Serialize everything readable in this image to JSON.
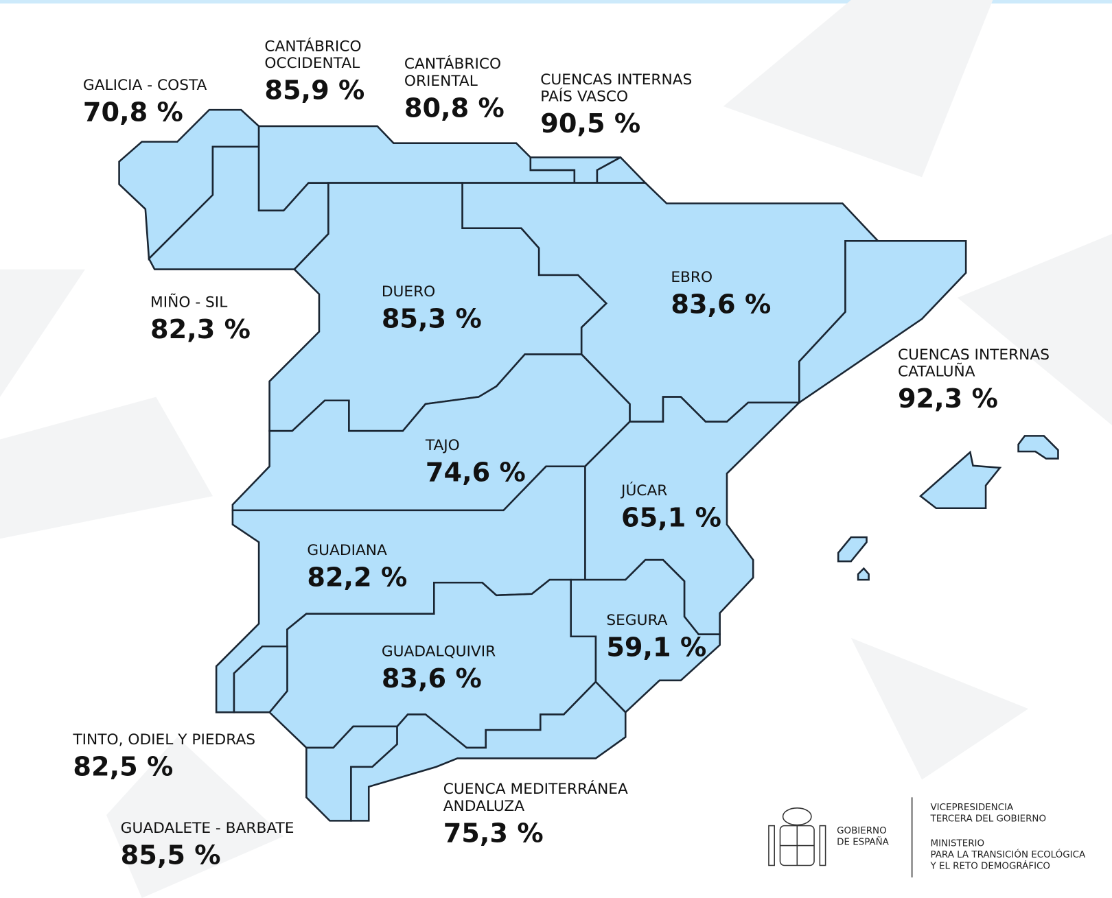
{
  "basins": [
    {
      "name": [
        "GALICIA - COSTA"
      ],
      "value": "70,8 %"
    },
    {
      "name": [
        "CANTÁBRICO",
        "OCCIDENTAL"
      ],
      "value": "85,9 %"
    },
    {
      "name": [
        "CANTÁBRICO",
        "ORIENTAL"
      ],
      "value": "80,8 %"
    },
    {
      "name": [
        "CUENCAS INTERNAS",
        "PAÍS VASCO"
      ],
      "value": "90,5 %"
    },
    {
      "name": [
        "MIÑO - SIL"
      ],
      "value": "82,3 %"
    },
    {
      "name": [
        "DUERO"
      ],
      "value": "85,3 %"
    },
    {
      "name": [
        "EBRO"
      ],
      "value": "83,6 %"
    },
    {
      "name": [
        "CUENCAS INTERNAS",
        "CATALUÑA"
      ],
      "value": "92,3 %"
    },
    {
      "name": [
        "TAJO"
      ],
      "value": "74,6 %"
    },
    {
      "name": [
        "JÚCAR"
      ],
      "value": "65,1 %"
    },
    {
      "name": [
        "GUADIANA"
      ],
      "value": "82,2 %"
    },
    {
      "name": [
        "SEGURA"
      ],
      "value": "59,1 %"
    },
    {
      "name": [
        "GUADALQUIVIR"
      ],
      "value": "83,6 %"
    },
    {
      "name": [
        "TINTO, ODIEL Y PIEDRAS"
      ],
      "value": "82,5 %"
    },
    {
      "name": [
        "GUADALETE - BARBATE"
      ],
      "value": "85,5 %"
    },
    {
      "name": [
        "CUENCA MEDITERRÁNEA",
        "ANDALUZA"
      ],
      "value": "75,3 %"
    }
  ],
  "footer": {
    "government": [
      "GOBIERNO",
      "DE ESPAÑA"
    ],
    "vicepresidency": [
      "VICEPRESIDENCIA",
      "TERCERA DEL GOBIERNO"
    ],
    "ministry": [
      "MINISTERIO",
      "PARA LA TRANSICIÓN ECOLÓGICA",
      "Y EL RETO DEMOGRÁFICO"
    ]
  }
}
